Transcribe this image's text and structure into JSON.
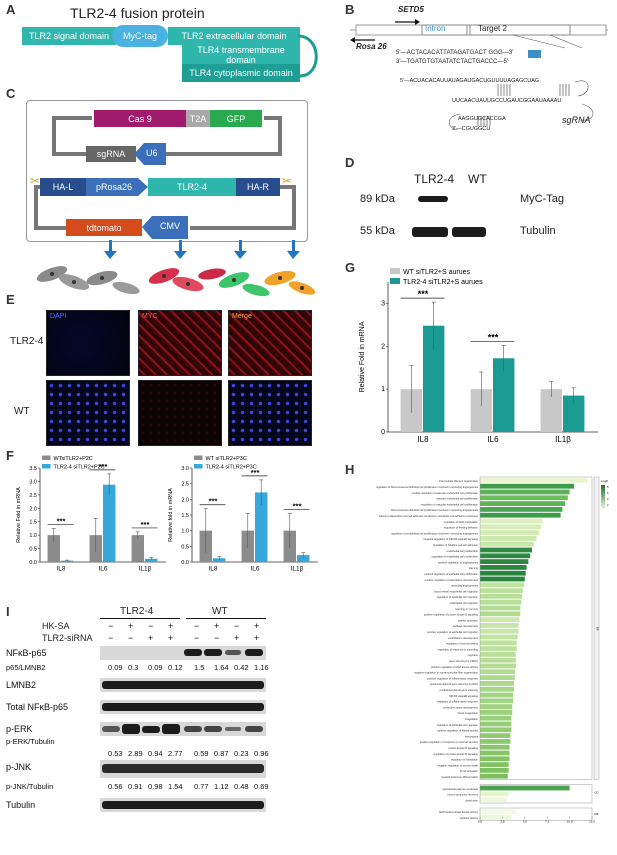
{
  "panel_labels": {
    "A": "A",
    "B": "B",
    "C": "C",
    "D": "D",
    "E": "E",
    "F": "F",
    "G": "G",
    "H": "H",
    "I": "I"
  },
  "panelA": {
    "title": "TLR2-4 fusion protein",
    "domains": [
      "TLR2 signal domain",
      "MyC-tag",
      "TLR2 extracellular domain",
      "TLR4 transmembrane domain",
      "TLR4 cytoplasmic domain"
    ]
  },
  "panelB": {
    "setd5": "SETD5",
    "intron": "Intron",
    "target": "Target 2",
    "rosa": "Rosa 26",
    "seq1": "5'—ACTACACATTATAGATGACT GGG—3'",
    "seq2": "3'—TGATGTGTAATATCTACTGACCC—5'",
    "seq3": "5'—ACUACACAUUAUAGAUGACUGUUUUAGAGCUAG",
    "seq4": "UUCAACUAUUGCCUGAUCGGAAUAAAAU",
    "seq5": "AAGGUGCACCGA",
    "seq6": "3'—CGUGGCU",
    "sgrna": "sgRNA"
  },
  "panelC": {
    "cas9": "Cas 9",
    "t2a": "T2A",
    "gfp": "GFP",
    "sgrna": "sgRNA",
    "u6": "U6",
    "hal": "HA-L",
    "prosa": "pRosa26",
    "tlr": "TLR2-4",
    "har": "HA-R",
    "tdtomato": "tdtomato",
    "cmv": "CMV"
  },
  "panelD": {
    "col1": "TLR2-4",
    "col2": "WT",
    "kda1": "89 kDa",
    "kda2": "55 kDa",
    "label1": "MyC-Tag",
    "label2": "Tubulin"
  },
  "panelE": {
    "channels": [
      "DAPI",
      "MYC",
      "Merge"
    ],
    "rows": [
      "TLR2-4",
      "WT"
    ]
  },
  "panelG": {
    "legend": [
      "WT siTLR2+S aurues",
      "TLR2-4 siTLR2+S aurues"
    ],
    "ylabel": "Relative Fold in mRNA",
    "sig": [
      "***",
      "***"
    ]
  },
  "panelF": {
    "left_legend": [
      "WTsiTLR2+P2C",
      "TLR2-4 siTLR2+P2C"
    ],
    "right_legend": [
      "WT siTLR2+P3C",
      "TLR2-4 siTLR2+P3C"
    ],
    "ylabel": "Relative Fold in mRNA",
    "ylabel2": "Relative fold in mRNA",
    "sig": "***"
  },
  "panelH": {
    "terms": [
      "intermediate filament organization",
      "regulation of blood vessel endothelial cell proliferation involved in sprouting angiogenesis",
      "positive regulation of vascular endothelial cell proliferation",
      "vascular endothelial cell proliferation",
      "regulation of vascular endothelial cell proliferation",
      "blood vessel endothelial cell proliferation involved in sprouting angiogenesis",
      "calcium-independent cell-cell adhesion via plasma membrane cell-adhesion molecules",
      "regulation of DNA methylation",
      "regulation of feeding behavior",
      "regulation of endothelial cell proliferation involved in sprouting angiogenesis",
      "negative regulation of NIK/NF-kappaB signaling",
      "regulation of histidine cell-cell adhesion",
      "endothelial cell proliferation",
      "regulation of endothelial cell proliferation",
      "positive regulation of angiogenesis",
      "learning",
      "positive regulation of epithelial cell proliferation",
      "positive regulation of vasculature development",
      "sprouting angiogenesis",
      "blood vessel endothelial cell migration",
      "regulation of epithelial cell migration",
      "endothelial cell migration",
      "learning or memory",
      "positive regulation of protein kinase B signaling",
      "platelet activation",
      "cartilage development",
      "positive regulation of epithelial cell migration",
      "endothelium development",
      "regulation of wound healing",
      "regulation of response to wounding",
      "cognition",
      "gene silencing by miRNA",
      "positive regulation of MAP kinase activity",
      "negative regulation of supramolecular fiber organization",
      "positive regulation of inflammatory response",
      "posttranscriptional gene silencing by RNA",
      "posttranscriptional gene silencing",
      "NIK/NF-kappaB signaling",
      "regulation of inflammatory response",
      "connective tissue development",
      "blood coagulation",
      "coagulation",
      "regulation of epithelial cell migration",
      "positive regulation of kinase activity",
      "hemostasis",
      "positive regulation of response to external stimulus",
      "protein kinase B signaling",
      "regulation of protein kinase B signaling",
      "regulation of translation",
      "negative regulation of neuron death",
      "B cell activation",
      "myeloid leukocyte differentiation",
      "apicolateral plasma membrane",
      "neuron projection terminus",
      "distal axon",
      "MAP kinase kinase kinase activity",
      "cytokine activity"
    ],
    "values": [
      12.0,
      10.5,
      10.0,
      9.8,
      9.5,
      9.2,
      9.0,
      7.0,
      6.8,
      6.6,
      6.3,
      6.0,
      5.8,
      5.6,
      5.4,
      5.2,
      5.1,
      5.0,
      4.9,
      4.8,
      4.7,
      4.6,
      4.5,
      4.5,
      4.4,
      4.3,
      4.3,
      4.2,
      4.1,
      4.1,
      4.0,
      4.0,
      4.0,
      3.9,
      3.9,
      3.8,
      3.8,
      3.7,
      3.7,
      3.6,
      3.6,
      3.5,
      3.5,
      3.5,
      3.4,
      3.4,
      3.3,
      3.3,
      3.3,
      3.2,
      3.2,
      3.1,
      10.0,
      3.2,
      3.0,
      4.0,
      3.5
    ],
    "colors": [
      "#e8f5cf",
      "#3e9a4c",
      "#5cb357",
      "#6cbb5c",
      "#5fb356",
      "#4aa350",
      "#3f9b4b",
      "#ddf0c0",
      "#d7edba",
      "#d2ebb4",
      "#cce8ad",
      "#c7e6a8",
      "#2e8a42",
      "#2d8941",
      "#2c8840",
      "#2b873f",
      "#2a863e",
      "#29853d",
      "#bfe29f",
      "#bce19c",
      "#b9e09a",
      "#b6de97",
      "#b3dd94",
      "#b0db91",
      "#cce8ad",
      "#c9e6aa",
      "#c6e5a7",
      "#c3e3a4",
      "#c0e2a1",
      "#bde09e",
      "#badf9b",
      "#b7dd98",
      "#b4dc95",
      "#b1da92",
      "#aed98f",
      "#abd78c",
      "#a8d689",
      "#a5d486",
      "#a2d383",
      "#9fd180",
      "#9cd07d",
      "#99ce7a",
      "#96cd77",
      "#93cb74",
      "#90ca71",
      "#8dc86e",
      "#8ac76b",
      "#87c568",
      "#84c465",
      "#81c262",
      "#7ec15f",
      "#7bbf5c",
      "#4aa350",
      "#e5f4cb",
      "#eef8dc",
      "#f2f9e4",
      "#eef8dc"
    ],
    "legend_title": "-LogP",
    "legend_ticks": [
      "8",
      "6",
      "4",
      "2"
    ],
    "side_labels": [
      "BP",
      "CC",
      "MF"
    ],
    "xticks": [
      "0.0",
      "2.5",
      "5.0",
      "7.5",
      "10.0",
      "12.5"
    ]
  },
  "panelI": {
    "groups": [
      "TLR2-4",
      "WT"
    ],
    "treat1": "HK-SA",
    "treat2": "TLR2-siRNA",
    "signs1": [
      "−",
      "+",
      "−",
      "+",
      "−",
      "+",
      "−",
      "+"
    ],
    "signs2": [
      "−",
      "−",
      "+",
      "+",
      "−",
      "−",
      "+",
      "+"
    ],
    "rows": {
      "nfkb": "NFκB-p65",
      "nfkb_ratio": "p65/LMNB2",
      "lmnb2": "LMNB2",
      "total": "Total NFκB-p65",
      "perk": "p-ERK",
      "perk_ratio": "p-ERK/Tubulin",
      "pjnk": "p-JNK",
      "pjnk_ratio": "p-JNK/Tubulin",
      "tubulin": "Tubulin"
    },
    "p65_vals": [
      "0.09",
      "0.3",
      "0.09",
      "0.12",
      "1.5",
      "1.64",
      "0.42",
      "1.16"
    ],
    "erk_vals": [
      "0.53",
      "2.89",
      "0.94",
      "2.77",
      "0.59",
      "0.87",
      "0.23",
      "0.96"
    ],
    "jnk_vals": [
      "0.56",
      "0.91",
      "0.98",
      "1.54",
      "0.77",
      "1.12",
      "0.48",
      "0.69"
    ]
  },
  "chart_data": [
    {
      "type": "bar",
      "panel": "G",
      "categories": [
        "IL8",
        "IL6",
        "IL1β"
      ],
      "series": [
        {
          "name": "WT siTLR2+S aurues",
          "values": [
            1.0,
            1.0,
            1.0
          ],
          "err": [
            0.55,
            0.4,
            0.18
          ],
          "color": "#c8c8c8"
        },
        {
          "name": "TLR2-4 siTLR2+S aurues",
          "values": [
            2.48,
            1.72,
            0.85
          ],
          "err": [
            0.55,
            0.3,
            0.18
          ],
          "color": "#1a9a93"
        }
      ],
      "ylabel": "Relative Fold in mRNA",
      "ylim": [
        0,
        3.5
      ],
      "yticks": [
        "0",
        "1",
        "2",
        "3"
      ]
    },
    {
      "type": "bar",
      "panel": "F-left",
      "categories": [
        "IL8",
        "IL6",
        "IL1β"
      ],
      "series": [
        {
          "name": "WTsiTLR2+P2C",
          "values": [
            1.0,
            1.0,
            1.0
          ],
          "err": [
            0.25,
            0.62,
            0.12
          ],
          "color": "#8c8c8c"
        },
        {
          "name": "TLR2-4 siTLR2+P2C",
          "values": [
            0.05,
            2.88,
            0.12
          ],
          "err": [
            0.02,
            0.4,
            0.05
          ],
          "color": "#36a9dc"
        }
      ],
      "ylabel": "Relative Fold in mRNA",
      "ylim": [
        0,
        3.5
      ],
      "yticks": [
        "0.0",
        "0.5",
        "1.0",
        "1.5",
        "2.0",
        "2.5",
        "3.0",
        "3.5"
      ]
    },
    {
      "type": "bar",
      "panel": "F-right",
      "categories": [
        "IL8",
        "IL6",
        "IL1β"
      ],
      "series": [
        {
          "name": "WT siTLR2+P3C",
          "values": [
            1.0,
            1.0,
            1.0
          ],
          "err": [
            0.7,
            0.55,
            0.55
          ],
          "color": "#8c8c8c"
        },
        {
          "name": "TLR2-4 siTLR2+P3C",
          "values": [
            0.12,
            2.22,
            0.22
          ],
          "err": [
            0.05,
            0.4,
            0.08
          ],
          "color": "#36a9dc"
        }
      ],
      "ylabel": "Relative fold in mRNA",
      "ylim": [
        0,
        3.0
      ],
      "yticks": [
        "0.0",
        "0.5",
        "1.0",
        "1.5",
        "2.0",
        "2.5",
        "3.0"
      ]
    }
  ]
}
